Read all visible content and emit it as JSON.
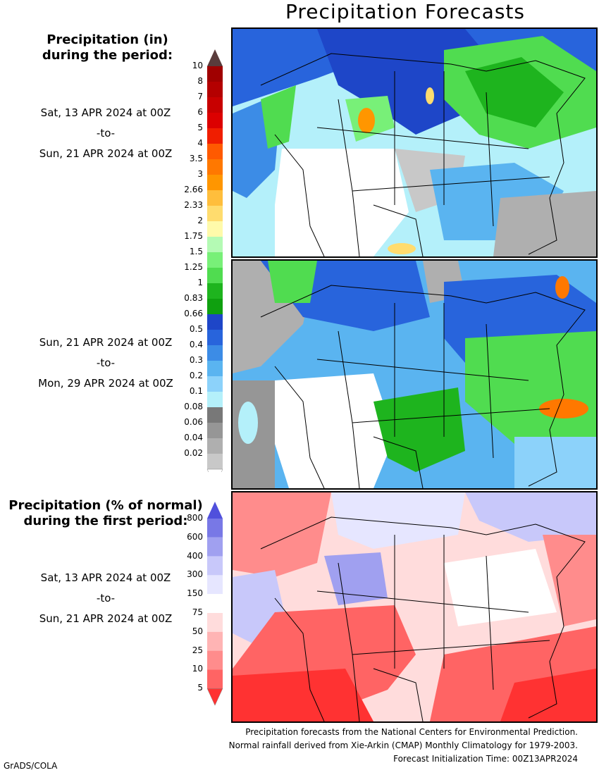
{
  "title": "Precipitation Forecasts",
  "precip_legend": {
    "header_line1": "Precipitation (in)",
    "header_line2": "during the period:",
    "levels": [
      "10",
      "8",
      "7",
      "6",
      "5",
      "4",
      "3.5",
      "3",
      "2.66",
      "2.33",
      "2",
      "1.75",
      "1.5",
      "1.25",
      "1",
      "0.83",
      "0.66",
      "0.5",
      "0.4",
      "0.3",
      "0.2",
      "0.1",
      "0.08",
      "0.06",
      "0.04",
      "0.02"
    ],
    "colors": [
      "#a00000",
      "#b40000",
      "#c80000",
      "#dc0000",
      "#f01e00",
      "#ff5a00",
      "#ff7800",
      "#ff9600",
      "#ffbe3c",
      "#ffdc6e",
      "#fffaaa",
      "#b4fab4",
      "#78f078",
      "#50dc50",
      "#1eb41e",
      "#0fa00f",
      "#1e46c8",
      "#2864dc",
      "#3c8ce6",
      "#5ab4f0",
      "#8cd2fa",
      "#b4f0fa",
      "#787878",
      "#969696",
      "#afafaf",
      "#c8c8c8",
      "#ffffff"
    ],
    "top_cap_color": "#5a3c3c"
  },
  "pct_legend": {
    "header_line1": "Precipitation (% of normal)",
    "header_line2": "during the first period:",
    "levels": [
      "800",
      "600",
      "400",
      "300",
      "150",
      "75",
      "50",
      "25",
      "10",
      "5"
    ],
    "colors": [
      "#5050dc",
      "#7878e6",
      "#a0a0f0",
      "#c8c8fa",
      "#e6e6ff",
      "#ffffff",
      "#ffdcdc",
      "#ffb4b4",
      "#ff8c8c",
      "#ff6464",
      "#ff3232"
    ]
  },
  "periods": [
    {
      "start": "Sat, 13 APR 2024 at 00Z",
      "sep": "-to-",
      "end": "Sun, 21 APR 2024 at 00Z"
    },
    {
      "start": "Sun, 21 APR 2024 at 00Z",
      "sep": "-to-",
      "end": "Mon, 29 APR 2024 at 00Z"
    },
    {
      "start": "Sat, 13 APR 2024 at 00Z",
      "sep": "-to-",
      "end": "Sun, 21 APR 2024 at 00Z"
    }
  ],
  "footer": {
    "line1": "Precipitation forecasts from the National Centers for Environmental Prediction.",
    "line2": "Normal rainfall derived from Xie-Arkin (CMAP) Monthly Climatology for 1979-2003.",
    "line3": "Forecast Initialization Time: 00Z13APR2024"
  },
  "credit": "GrADS/COLA"
}
